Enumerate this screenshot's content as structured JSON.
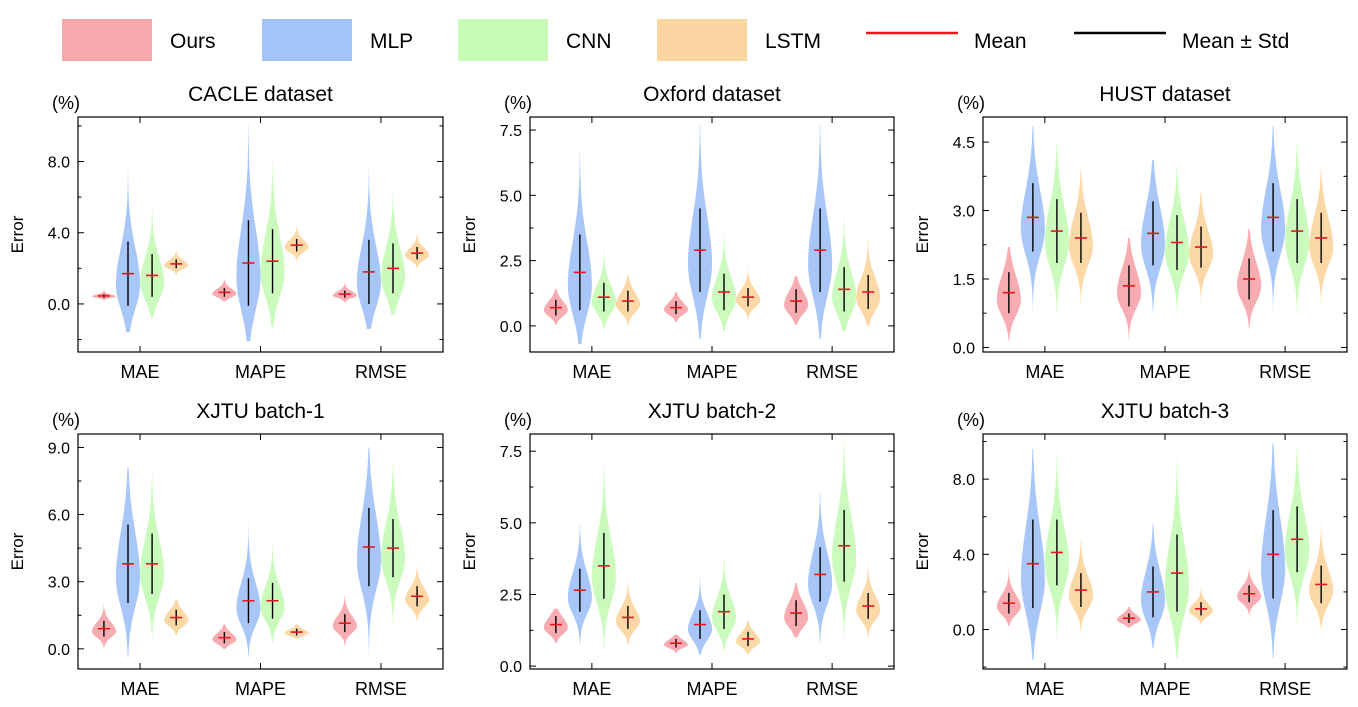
{
  "legend": {
    "entries": [
      {
        "key": "ours",
        "label": "Ours",
        "kind": "patch",
        "color": "#f7a8ad"
      },
      {
        "key": "mlp",
        "label": "MLP",
        "kind": "patch",
        "color": "#a3c4f8"
      },
      {
        "key": "cnn",
        "label": "CNN",
        "kind": "patch",
        "color": "#c8fbb8"
      },
      {
        "key": "lstm",
        "label": "LSTM",
        "kind": "patch",
        "color": "#fcd6a2"
      },
      {
        "key": "mean",
        "label": "Mean",
        "kind": "line",
        "color": "#e8151b"
      },
      {
        "key": "std",
        "label": "Mean ± Std",
        "kind": "line",
        "color": "#000000"
      }
    ]
  },
  "chart_data": [
    {
      "type": "violin",
      "title": "CACLE dataset",
      "unit_label": "(%)",
      "ylabel": "Error",
      "categories": [
        "MAE",
        "MAPE",
        "RMSE"
      ],
      "ylim": [
        -2.7,
        10.5
      ],
      "yticks": [
        0.0,
        4.0,
        8.0
      ],
      "ytick_labels": [
        "0.0",
        "4.0",
        "8.0"
      ],
      "series": [
        {
          "name": "Ours",
          "stats": [
            {
              "mean": 0.45,
              "std": 0.1,
              "min": 0.15,
              "max": 0.8
            },
            {
              "mean": 0.65,
              "std": 0.25,
              "min": 0.15,
              "max": 1.4
            },
            {
              "mean": 0.55,
              "std": 0.2,
              "min": 0.1,
              "max": 1.4
            }
          ]
        },
        {
          "name": "MLP",
          "stats": [
            {
              "mean": 1.7,
              "std": 1.8,
              "min": -1.6,
              "max": 7.6
            },
            {
              "mean": 2.3,
              "std": 2.4,
              "min": -2.1,
              "max": 10.1
            },
            {
              "mean": 1.8,
              "std": 1.8,
              "min": -1.4,
              "max": 7.6
            }
          ]
        },
        {
          "name": "CNN",
          "stats": [
            {
              "mean": 1.6,
              "std": 1.2,
              "min": -0.8,
              "max": 5.6
            },
            {
              "mean": 2.4,
              "std": 1.8,
              "min": -1.3,
              "max": 8.8
            },
            {
              "mean": 2.0,
              "std": 1.4,
              "min": -0.6,
              "max": 6.2
            }
          ]
        },
        {
          "name": "LSTM",
          "stats": [
            {
              "mean": 2.25,
              "std": 0.25,
              "min": 1.4,
              "max": 3.1
            },
            {
              "mean": 3.3,
              "std": 0.35,
              "min": 2.2,
              "max": 4.6
            },
            {
              "mean": 2.85,
              "std": 0.35,
              "min": 1.9,
              "max": 4.0
            }
          ]
        }
      ]
    },
    {
      "type": "violin",
      "title": "Oxford dataset",
      "unit_label": "(%)",
      "ylabel": "Error",
      "categories": [
        "MAE",
        "MAPE",
        "RMSE"
      ],
      "ylim": [
        -1.0,
        8.0
      ],
      "yticks": [
        0.0,
        2.5,
        5.0,
        7.5
      ],
      "ytick_labels": [
        "0.0",
        "2.5",
        "5.0",
        "7.5"
      ],
      "series": [
        {
          "name": "Ours",
          "stats": [
            {
              "mean": 0.7,
              "std": 0.3,
              "min": 0.05,
              "max": 1.4
            },
            {
              "mean": 0.7,
              "std": 0.25,
              "min": 0.15,
              "max": 1.3
            },
            {
              "mean": 0.95,
              "std": 0.45,
              "min": 0.05,
              "max": 1.9
            }
          ]
        },
        {
          "name": "MLP",
          "stats": [
            {
              "mean": 2.05,
              "std": 1.45,
              "min": -0.7,
              "max": 6.7
            },
            {
              "mean": 2.9,
              "std": 1.6,
              "min": -0.5,
              "max": 7.7
            },
            {
              "mean": 2.9,
              "std": 1.6,
              "min": -0.5,
              "max": 7.7
            }
          ]
        },
        {
          "name": "CNN",
          "stats": [
            {
              "mean": 1.1,
              "std": 0.55,
              "min": -0.1,
              "max": 3.1
            },
            {
              "mean": 1.3,
              "std": 0.7,
              "min": -0.2,
              "max": 3.6
            },
            {
              "mean": 1.4,
              "std": 0.85,
              "min": -0.2,
              "max": 4.1
            }
          ]
        },
        {
          "name": "LSTM",
          "stats": [
            {
              "mean": 0.95,
              "std": 0.4,
              "min": 0.0,
              "max": 2.0
            },
            {
              "mean": 1.1,
              "std": 0.35,
              "min": 0.2,
              "max": 2.3
            },
            {
              "mean": 1.3,
              "std": 0.65,
              "min": 0.0,
              "max": 3.4
            }
          ]
        }
      ]
    },
    {
      "type": "violin",
      "title": "HUST dataset",
      "unit_label": "(%)",
      "ylabel": "Error",
      "categories": [
        "MAE",
        "MAPE",
        "RMSE"
      ],
      "ylim": [
        -0.1,
        5.05
      ],
      "yticks": [
        0.0,
        1.5,
        3.0,
        4.5
      ],
      "ytick_labels": [
        "0.0",
        "1.5",
        "3.0",
        "4.5"
      ],
      "series": [
        {
          "name": "Ours",
          "stats": [
            {
              "mean": 1.2,
              "std": 0.45,
              "min": 0.15,
              "max": 2.2
            },
            {
              "mean": 1.35,
              "std": 0.45,
              "min": 0.2,
              "max": 2.4
            },
            {
              "mean": 1.5,
              "std": 0.45,
              "min": 0.4,
              "max": 2.6
            }
          ]
        },
        {
          "name": "MLP",
          "stats": [
            {
              "mean": 2.85,
              "std": 0.75,
              "min": 0.7,
              "max": 4.85
            },
            {
              "mean": 2.5,
              "std": 0.7,
              "min": 0.8,
              "max": 4.1
            },
            {
              "mean": 2.85,
              "std": 0.75,
              "min": 0.7,
              "max": 4.85
            }
          ]
        },
        {
          "name": "CNN",
          "stats": [
            {
              "mean": 2.55,
              "std": 0.7,
              "min": 0.7,
              "max": 4.5
            },
            {
              "mean": 2.3,
              "std": 0.6,
              "min": 0.8,
              "max": 3.95
            },
            {
              "mean": 2.55,
              "std": 0.7,
              "min": 0.7,
              "max": 4.5
            }
          ]
        },
        {
          "name": "LSTM",
          "stats": [
            {
              "mean": 2.4,
              "std": 0.55,
              "min": 0.9,
              "max": 3.9
            },
            {
              "mean": 2.2,
              "std": 0.45,
              "min": 0.9,
              "max": 3.4
            },
            {
              "mean": 2.4,
              "std": 0.55,
              "min": 0.9,
              "max": 3.9
            }
          ]
        }
      ]
    },
    {
      "type": "violin",
      "title": "XJTU batch-1",
      "unit_label": "(%)",
      "ylabel": "Error",
      "categories": [
        "MAE",
        "MAPE",
        "RMSE"
      ],
      "ylim": [
        -0.9,
        9.6
      ],
      "yticks": [
        0.0,
        3.0,
        6.0,
        9.0
      ],
      "ytick_labels": [
        "0.0",
        "3.0",
        "6.0",
        "9.0"
      ],
      "series": [
        {
          "name": "Ours",
          "stats": [
            {
              "mean": 0.9,
              "std": 0.35,
              "min": 0.0,
              "max": 2.0
            },
            {
              "mean": 0.5,
              "std": 0.25,
              "min": 0.0,
              "max": 1.1
            },
            {
              "mean": 1.15,
              "std": 0.4,
              "min": 0.1,
              "max": 2.4
            }
          ]
        },
        {
          "name": "MLP",
          "stats": [
            {
              "mean": 3.8,
              "std": 1.75,
              "min": -0.4,
              "max": 8.1
            },
            {
              "mean": 2.15,
              "std": 1.0,
              "min": -0.4,
              "max": 5.7
            },
            {
              "mean": 4.55,
              "std": 1.75,
              "min": -0.2,
              "max": 9.0
            }
          ]
        },
        {
          "name": "CNN",
          "stats": [
            {
              "mean": 3.8,
              "std": 1.35,
              "min": 0.5,
              "max": 7.9
            },
            {
              "mean": 2.15,
              "std": 0.8,
              "min": 0.3,
              "max": 5.0
            },
            {
              "mean": 4.5,
              "std": 1.3,
              "min": 1.1,
              "max": 8.2
            }
          ]
        },
        {
          "name": "LSTM",
          "stats": [
            {
              "mean": 1.4,
              "std": 0.35,
              "min": 0.6,
              "max": 2.2
            },
            {
              "mean": 0.75,
              "std": 0.15,
              "min": 0.45,
              "max": 1.1
            },
            {
              "mean": 2.35,
              "std": 0.45,
              "min": 1.2,
              "max": 3.6
            }
          ]
        }
      ]
    },
    {
      "type": "violin",
      "title": "XJTU batch-2",
      "unit_label": "(%)",
      "ylabel": "Error",
      "categories": [
        "MAE",
        "MAPE",
        "RMSE"
      ],
      "ylim": [
        -0.1,
        8.1
      ],
      "yticks": [
        0.0,
        2.5,
        5.0,
        7.5
      ],
      "ytick_labels": [
        "0.0",
        "2.5",
        "5.0",
        "7.5"
      ],
      "series": [
        {
          "name": "Ours",
          "stats": [
            {
              "mean": 1.45,
              "std": 0.3,
              "min": 0.8,
              "max": 2.0
            },
            {
              "mean": 0.8,
              "std": 0.15,
              "min": 0.45,
              "max": 1.1
            },
            {
              "mean": 1.85,
              "std": 0.45,
              "min": 1.0,
              "max": 2.9
            }
          ]
        },
        {
          "name": "MLP",
          "stats": [
            {
              "mean": 2.65,
              "std": 0.75,
              "min": 0.8,
              "max": 5.0
            },
            {
              "mean": 1.45,
              "std": 0.5,
              "min": 0.4,
              "max": 3.2
            },
            {
              "mean": 3.2,
              "std": 0.95,
              "min": 0.8,
              "max": 6.1
            }
          ]
        },
        {
          "name": "CNN",
          "stats": [
            {
              "mean": 3.5,
              "std": 1.15,
              "min": 0.6,
              "max": 7.0
            },
            {
              "mean": 1.9,
              "std": 0.6,
              "min": 0.5,
              "max": 3.8
            },
            {
              "mean": 4.2,
              "std": 1.25,
              "min": 1.0,
              "max": 8.0
            }
          ]
        },
        {
          "name": "LSTM",
          "stats": [
            {
              "mean": 1.7,
              "std": 0.4,
              "min": 0.7,
              "max": 3.1
            },
            {
              "mean": 0.95,
              "std": 0.25,
              "min": 0.4,
              "max": 1.6
            },
            {
              "mean": 2.1,
              "std": 0.45,
              "min": 1.0,
              "max": 3.6
            }
          ]
        }
      ]
    },
    {
      "type": "violin",
      "title": "XJTU batch-3",
      "unit_label": "(%)",
      "ylabel": "Error",
      "categories": [
        "MAE",
        "MAPE",
        "RMSE"
      ],
      "ylim": [
        -2.1,
        10.4
      ],
      "yticks": [
        0.0,
        4.0,
        8.0
      ],
      "ytick_labels": [
        "0.0",
        "4.0",
        "8.0"
      ],
      "series": [
        {
          "name": "Ours",
          "stats": [
            {
              "mean": 1.4,
              "std": 0.55,
              "min": 0.2,
              "max": 3.3
            },
            {
              "mean": 0.6,
              "std": 0.25,
              "min": 0.1,
              "max": 1.2
            },
            {
              "mean": 1.9,
              "std": 0.45,
              "min": 0.5,
              "max": 3.3
            }
          ]
        },
        {
          "name": "MLP",
          "stats": [
            {
              "mean": 3.5,
              "std": 2.35,
              "min": -1.6,
              "max": 9.6
            },
            {
              "mean": 2.0,
              "std": 1.35,
              "min": -1.0,
              "max": 5.6
            },
            {
              "mean": 4.0,
              "std": 2.35,
              "min": -1.5,
              "max": 9.9
            }
          ]
        },
        {
          "name": "CNN",
          "stats": [
            {
              "mean": 4.1,
              "std": 1.75,
              "min": -0.8,
              "max": 9.3
            },
            {
              "mean": 3.0,
              "std": 2.05,
              "min": -1.5,
              "max": 9.0
            },
            {
              "mean": 4.8,
              "std": 1.75,
              "min": -0.2,
              "max": 9.7
            }
          ]
        },
        {
          "name": "LSTM",
          "stats": [
            {
              "mean": 2.1,
              "std": 0.9,
              "min": -0.1,
              "max": 4.8
            },
            {
              "mean": 1.1,
              "std": 0.35,
              "min": 0.1,
              "max": 2.9
            },
            {
              "mean": 2.4,
              "std": 1.0,
              "min": 0.0,
              "max": 6.0
            }
          ]
        }
      ]
    }
  ]
}
